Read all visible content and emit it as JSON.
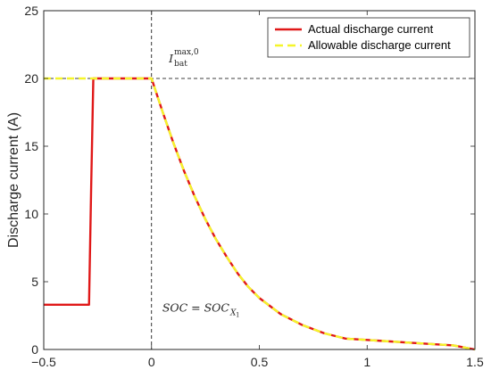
{
  "chart_data": {
    "type": "line",
    "title": "",
    "xlabel": "",
    "ylabel": "Discharge current (A)",
    "xlim": [
      -0.5,
      1.5
    ],
    "ylim": [
      0,
      25
    ],
    "xticks": [
      -0.5,
      0,
      0.5,
      1,
      1.5
    ],
    "xtick_labels": [
      "−0.5",
      "0",
      "0.5",
      "1",
      "1.5"
    ],
    "yticks": [
      0,
      5,
      10,
      15,
      20,
      25
    ],
    "ytick_labels": [
      "0",
      "5",
      "10",
      "15",
      "20",
      "25"
    ],
    "grid": false,
    "legend_position": "top-right",
    "reference_lines": {
      "vertical_x": 0,
      "horizontal_y": 20
    },
    "colors": {
      "actual": "#e01818",
      "allowable": "#f5f52a",
      "axis": "#262626",
      "reference": "#000000"
    },
    "series": [
      {
        "name": "Actual discharge current",
        "style": "solid",
        "x": [
          -0.5,
          -0.29,
          -0.28,
          -0.27,
          -0.26,
          0,
          0.05,
          0.1,
          0.15,
          0.2,
          0.25,
          0.3,
          0.35,
          0.4,
          0.45,
          0.5,
          0.6,
          0.7,
          0.8,
          0.9,
          1.0,
          1.1,
          1.2,
          1.3,
          1.4,
          1.5
        ],
        "y": [
          3.3,
          3.3,
          12.0,
          20.0,
          20.0,
          20.0,
          17.6,
          15.3,
          13.2,
          11.3,
          9.6,
          8.1,
          6.8,
          5.6,
          4.6,
          3.8,
          2.6,
          1.8,
          1.2,
          0.8,
          0.7,
          0.6,
          0.5,
          0.4,
          0.3,
          0.0
        ]
      },
      {
        "name": "Allowable discharge current",
        "style": "dashed",
        "x": [
          -0.5,
          0,
          0.05,
          0.1,
          0.15,
          0.2,
          0.25,
          0.3,
          0.35,
          0.4,
          0.45,
          0.5,
          0.6,
          0.7,
          0.8,
          0.9,
          1.0,
          1.1,
          1.2,
          1.3,
          1.4,
          1.5
        ],
        "y": [
          20.0,
          20.0,
          17.6,
          15.3,
          13.2,
          11.3,
          9.6,
          8.1,
          6.8,
          5.6,
          4.6,
          3.8,
          2.6,
          1.8,
          1.2,
          0.8,
          0.7,
          0.6,
          0.5,
          0.4,
          0.3,
          0.0
        ]
      }
    ],
    "annotations": {
      "ibat": {
        "main": "I",
        "subscript": "bat",
        "superscript": "max,0",
        "x": 0.08,
        "y": 21.2
      },
      "soc": {
        "text": "SOC = SOC",
        "subscript": "X",
        "sub_subscript": "1",
        "x": 0.05,
        "y": 2.8
      }
    }
  }
}
